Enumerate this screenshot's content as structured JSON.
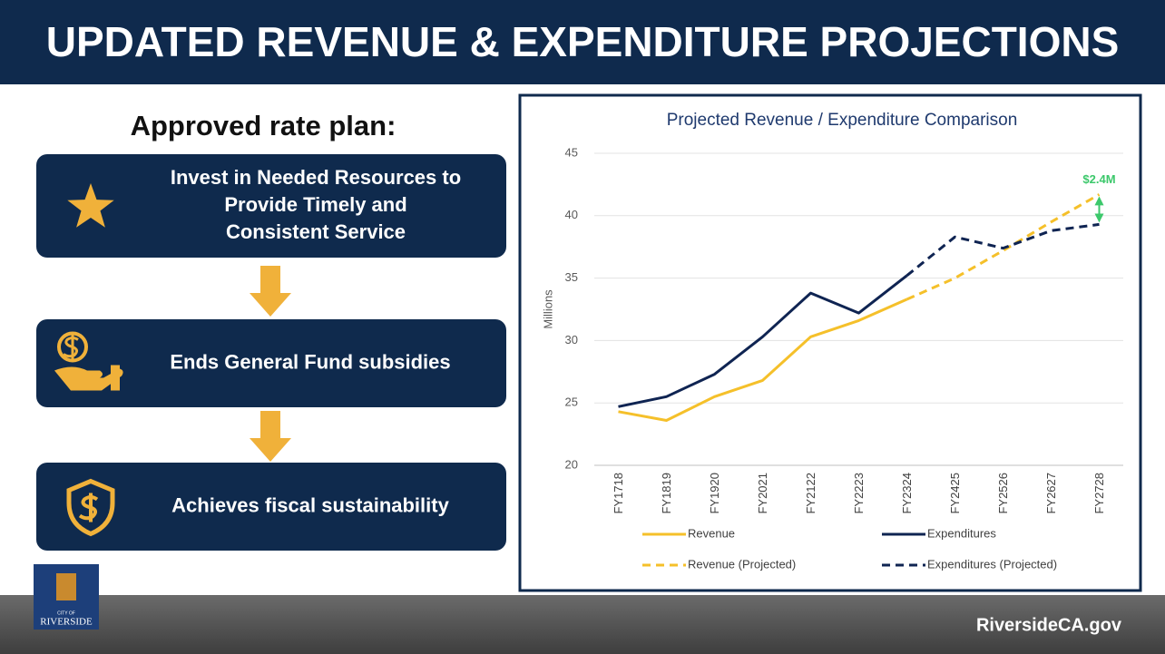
{
  "title": "UPDATED REVENUE & EXPENDITURE PROJECTIONS",
  "plan": {
    "heading": "Approved rate plan:",
    "items": [
      {
        "lines": [
          "Invest in Needed Resources to",
          "Provide Timely and",
          "Consistent Service"
        ]
      },
      {
        "lines": [
          "Ends General Fund subsidies"
        ]
      },
      {
        "lines": [
          "Achieves fiscal sustainability"
        ]
      }
    ]
  },
  "logo": {
    "small": "CITY OF",
    "name": "RIVERSIDE"
  },
  "footer": "RiversideCA.gov",
  "chart_data": {
    "type": "line",
    "title": "Projected Revenue / Expenditure Comparison",
    "ylabel": "Millions",
    "categories": [
      "FY1718",
      "FY1819",
      "FY1920",
      "FY2021",
      "FY2122",
      "FY2223",
      "FY2324",
      "FY2425",
      "FY2526",
      "FY2627",
      "FY2728"
    ],
    "ylim": [
      20,
      45
    ],
    "yticks": [
      20,
      25,
      30,
      35,
      40,
      45
    ],
    "grid": true,
    "series": [
      {
        "name": "Revenue",
        "color": "#f5c02a",
        "dashed": false,
        "values": [
          24.3,
          23.6,
          25.5,
          26.8,
          30.3,
          31.6,
          33.3,
          null,
          null,
          null,
          null
        ]
      },
      {
        "name": "Expenditures",
        "color": "#0f2452",
        "dashed": false,
        "values": [
          24.7,
          25.5,
          27.3,
          30.3,
          33.8,
          32.2,
          35.2,
          null,
          null,
          null,
          null
        ]
      },
      {
        "name": "Revenue (Projected)",
        "color": "#f5c02a",
        "dashed": true,
        "values": [
          null,
          null,
          null,
          null,
          null,
          null,
          33.3,
          35.0,
          37.2,
          39.5,
          41.7
        ]
      },
      {
        "name": "Expenditures (Projected)",
        "color": "#0f2452",
        "dashed": true,
        "values": [
          null,
          null,
          null,
          null,
          null,
          null,
          35.2,
          38.3,
          37.4,
          38.8,
          39.3
        ]
      }
    ],
    "annotation": "$2.4M",
    "annotation_color": "#3cc86b"
  }
}
